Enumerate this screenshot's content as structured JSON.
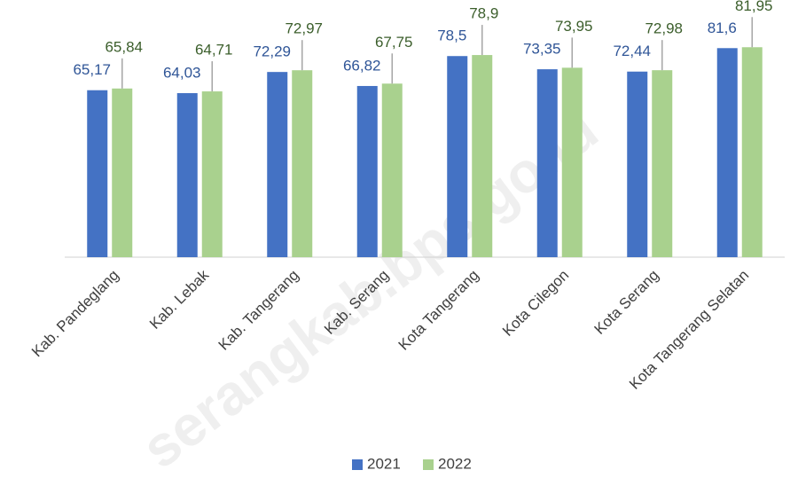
{
  "chart_data": {
    "type": "bar",
    "categories": [
      "Kab. Pandeglang",
      "Kab. Lebak",
      "Kab. Tangerang",
      "Kab. Serang",
      "Kota Tangerang",
      "Kota Cilegon",
      "Kota Serang",
      "Kota Tangerang Selatan"
    ],
    "series": [
      {
        "name": "2021",
        "color": "#4472c4",
        "values": [
          65.17,
          64.03,
          72.29,
          66.82,
          78.5,
          73.35,
          72.44,
          81.6
        ],
        "value_labels": [
          "65,17",
          "64,03",
          "72,29",
          "66,82",
          "78,5",
          "73,35",
          "72,44",
          "81,6"
        ]
      },
      {
        "name": "2022",
        "color": "#a9d18e",
        "values": [
          65.84,
          64.71,
          72.97,
          67.75,
          78.9,
          73.95,
          72.98,
          81.95
        ],
        "value_labels": [
          "65,84",
          "64,71",
          "72,97",
          "67,75",
          "78,9",
          "73,95",
          "72,98",
          "81,95"
        ]
      }
    ],
    "ylim": [
      0,
      90
    ],
    "legend": "bottom",
    "watermark": "serangkab.bps.go.id"
  }
}
